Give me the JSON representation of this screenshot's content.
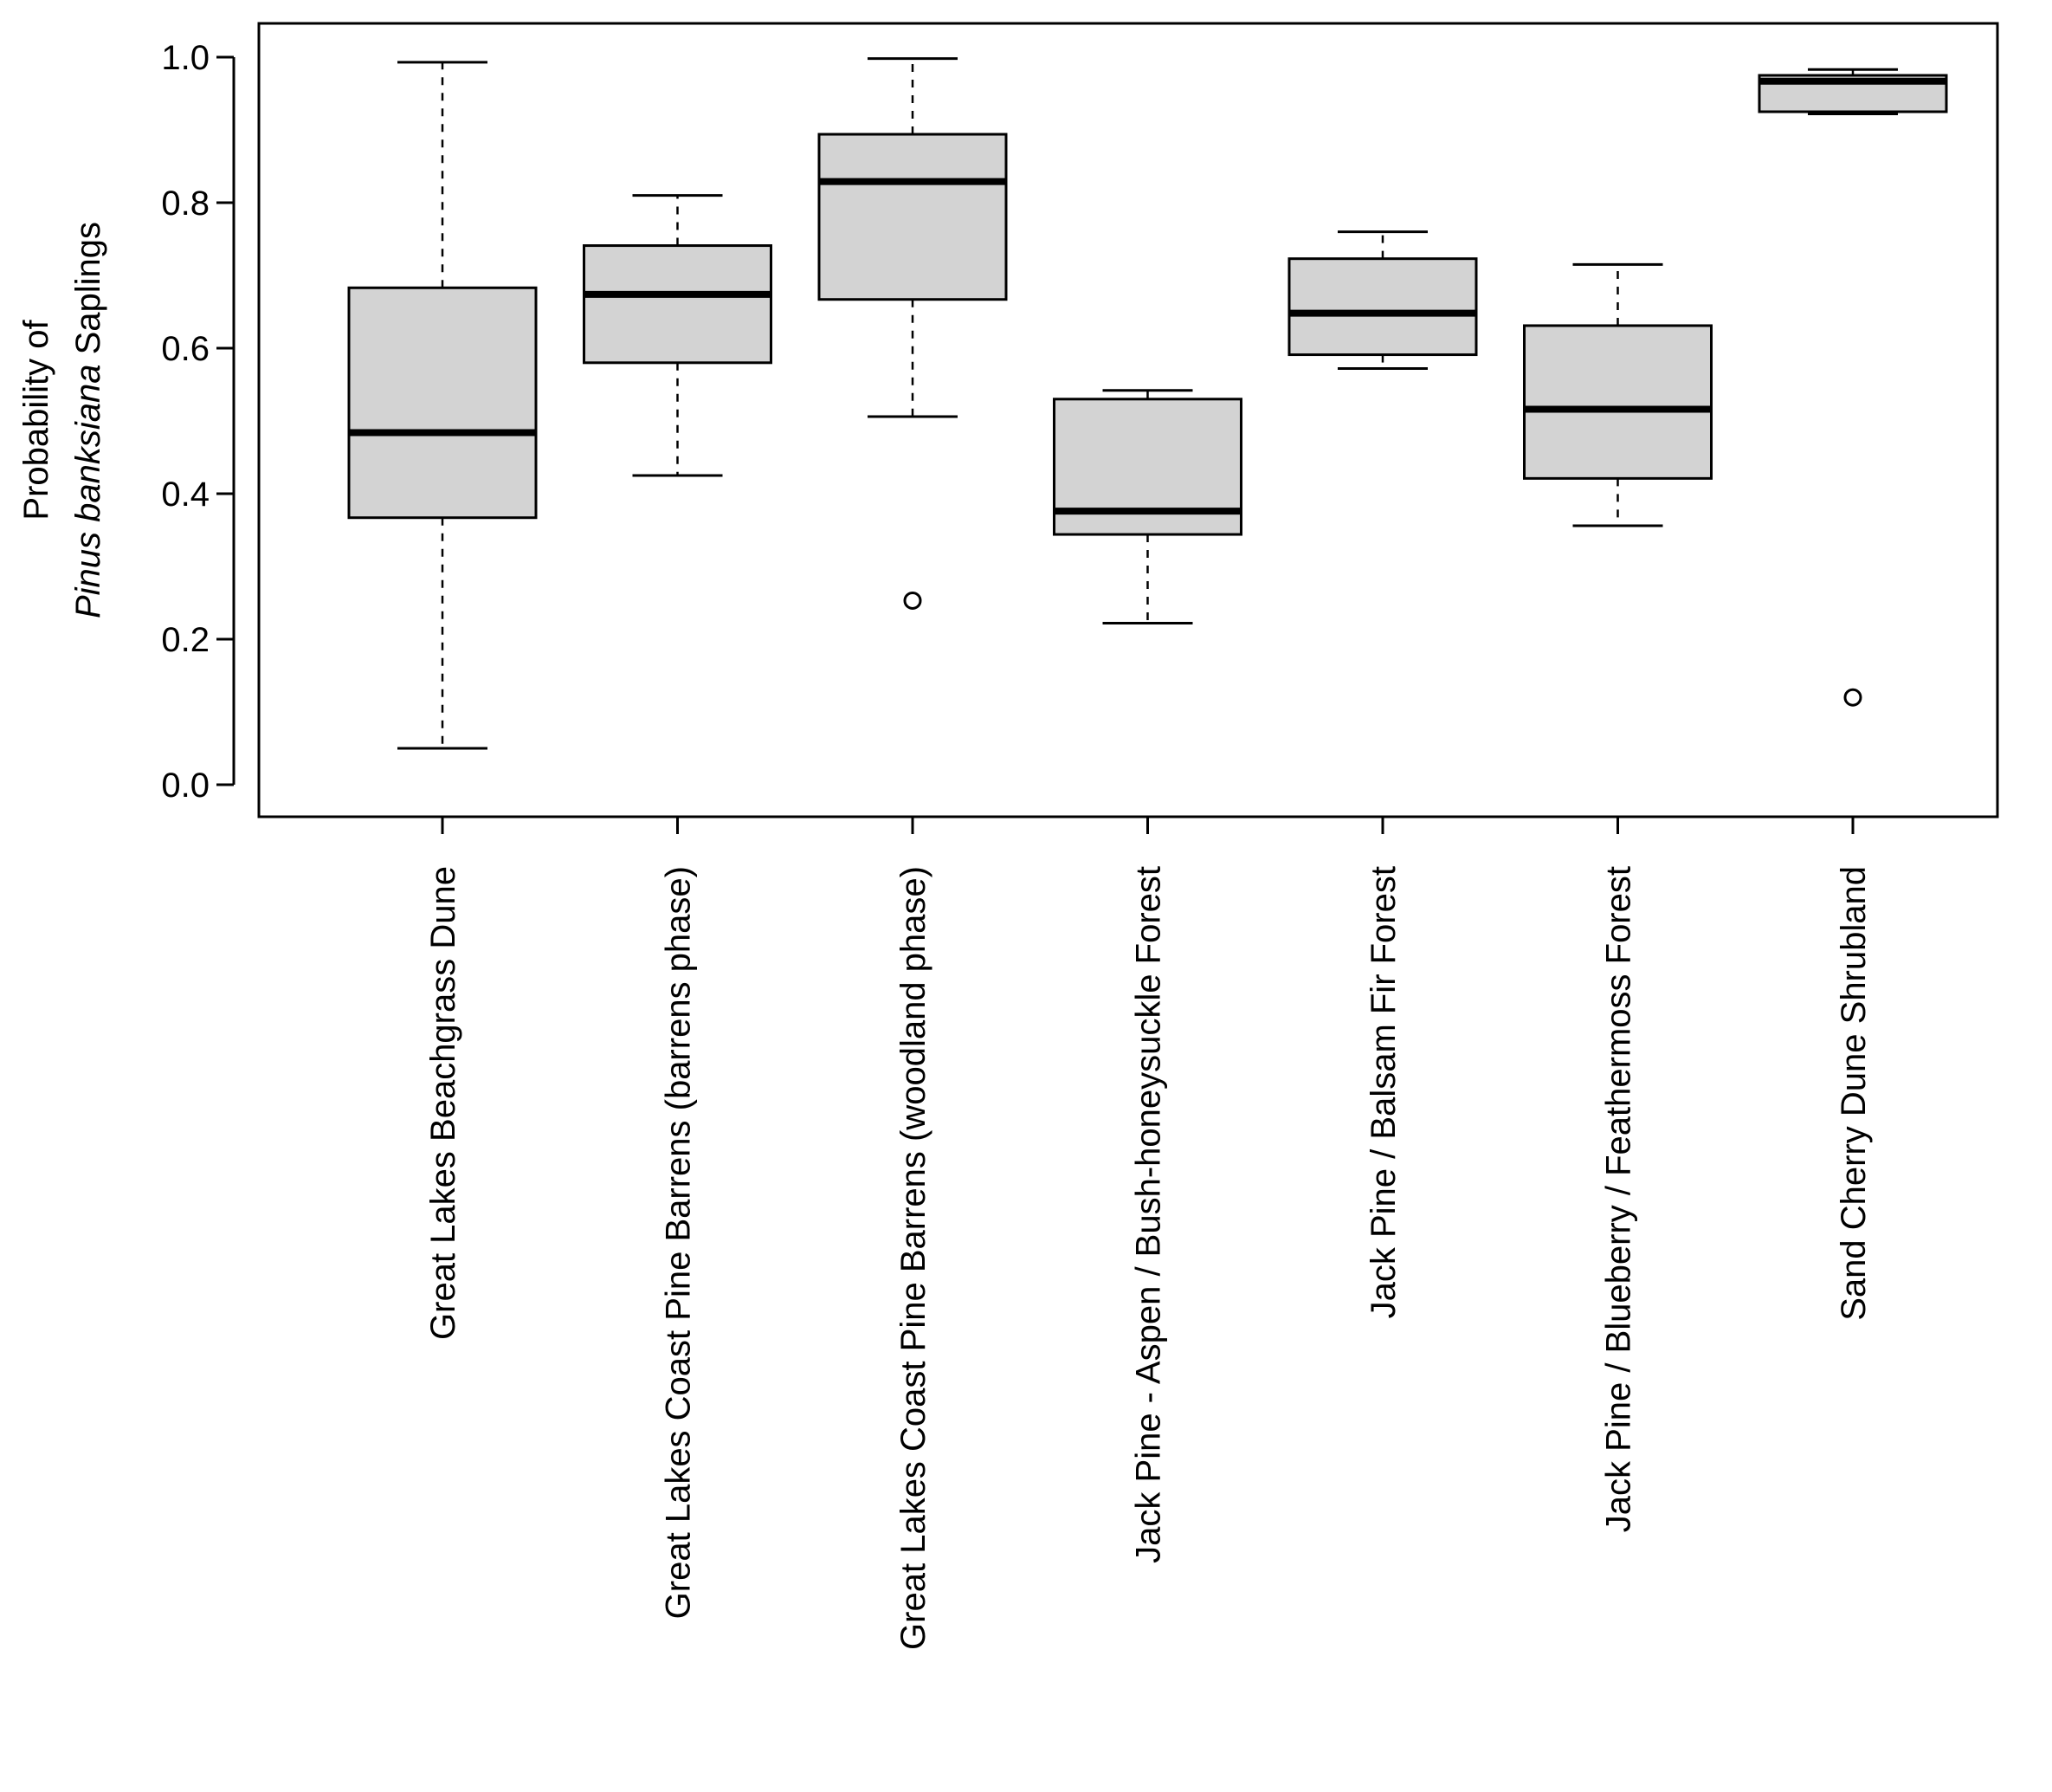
{
  "chart_data": {
    "type": "boxplot",
    "ylabel_line1": "Probability of",
    "ylabel_italic": "Pinus banksiana",
    "ylabel_rest": " Saplings",
    "ylim": [
      0.0,
      1.0
    ],
    "yticks": [
      "0.0",
      "0.2",
      "0.4",
      "0.6",
      "0.8",
      "1.0"
    ],
    "box_fill": "#d3d3d3",
    "line_color": "#000000",
    "categories": [
      "Great Lakes Beachgrass Dune",
      "Great Lakes Coast Pine Barrens (barrens phase)",
      "Great Lakes Coast Pine Barrens (woodland phase)",
      "Jack Pine - Aspen / Bush-honeysuckle Forest",
      "Jack Pine / Balsam Fir Forest",
      "Jack Pine / Blueberry / Feathermoss Forest",
      "Sand Cherry Dune Shrubland"
    ],
    "series": [
      {
        "name": "Great Lakes Beachgrass Dune",
        "min": 0.05,
        "q1": 0.367,
        "median": 0.484,
        "q3": 0.683,
        "max": 0.993,
        "outliers": []
      },
      {
        "name": "Great Lakes Coast Pine Barrens (barrens phase)",
        "min": 0.425,
        "q1": 0.58,
        "median": 0.674,
        "q3": 0.741,
        "max": 0.81,
        "outliers": []
      },
      {
        "name": "Great Lakes Coast Pine Barrens (woodland phase)",
        "min": 0.506,
        "q1": 0.667,
        "median": 0.829,
        "q3": 0.894,
        "max": 0.998,
        "outliers": [
          0.253
        ]
      },
      {
        "name": "Jack Pine - Aspen / Bush-honeysuckle Forest",
        "min": 0.222,
        "q1": 0.344,
        "median": 0.376,
        "q3": 0.53,
        "max": 0.542,
        "outliers": []
      },
      {
        "name": "Jack Pine / Balsam Fir Forest",
        "min": 0.572,
        "q1": 0.591,
        "median": 0.648,
        "q3": 0.723,
        "max": 0.76,
        "outliers": []
      },
      {
        "name": "Jack Pine / Blueberry / Feathermoss Forest",
        "min": 0.356,
        "q1": 0.421,
        "median": 0.516,
        "q3": 0.631,
        "max": 0.715,
        "outliers": []
      },
      {
        "name": "Sand Cherry Dune Shrubland",
        "min": 0.922,
        "q1": 0.925,
        "median": 0.967,
        "q3": 0.975,
        "max": 0.983,
        "outliers": [
          0.12
        ]
      }
    ]
  }
}
